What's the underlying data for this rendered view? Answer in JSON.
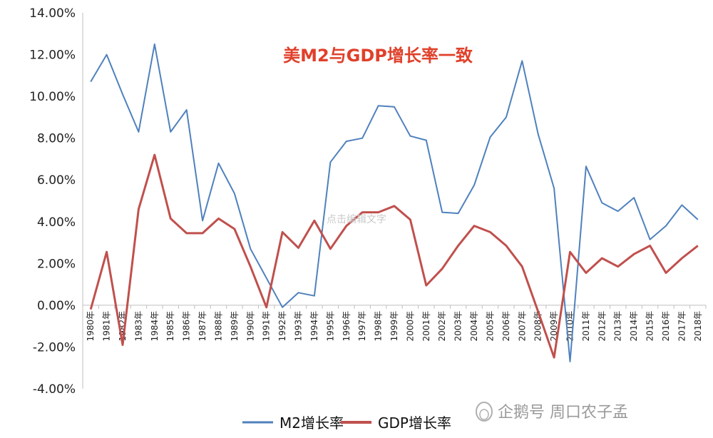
{
  "colors": {
    "m2": "#4f81bd",
    "gdp": "#c0504d",
    "title": "#e0402a"
  },
  "watermark_text": "点击编辑文字",
  "brand_text": "企鹅号 周口农子孟",
  "chart_data": {
    "type": "line",
    "title": "美M2与GDP增长率一致",
    "categories": [
      "1980年",
      "1981年",
      "1982年",
      "1983年",
      "1984年",
      "1985年",
      "1986年",
      "1987年",
      "1988年",
      "1989年",
      "1990年",
      "1991年",
      "1992年",
      "1993年",
      "1994年",
      "1995年",
      "1996年",
      "1997年",
      "1998年",
      "1999年",
      "2000年",
      "2001年",
      "2002年",
      "2003年",
      "2004年",
      "2005年",
      "2006年",
      "2007年",
      "2008年",
      "2009年",
      "2010年",
      "2011年",
      "2012年",
      "2013年",
      "2014年",
      "2015年",
      "2016年",
      "2017年",
      "2018年"
    ],
    "series": [
      {
        "name": "M2增长率",
        "values": [
          10.7,
          12.0,
          10.1,
          8.3,
          12.5,
          8.3,
          9.35,
          4.05,
          6.8,
          5.35,
          2.7,
          1.3,
          -0.1,
          0.6,
          0.45,
          6.85,
          7.85,
          8.0,
          9.55,
          9.5,
          8.1,
          7.9,
          4.45,
          4.4,
          5.75,
          8.05,
          9.0,
          11.7,
          8.2,
          5.6,
          -2.7,
          6.65,
          4.9,
          4.5,
          5.15,
          3.15,
          3.8,
          4.8,
          4.1
        ]
      },
      {
        "name": "GDP增长率",
        "values": [
          -0.2,
          2.55,
          -1.9,
          4.6,
          7.2,
          4.15,
          3.45,
          3.45,
          4.15,
          3.65,
          1.85,
          -0.1,
          3.5,
          2.75,
          4.05,
          2.7,
          3.8,
          4.45,
          4.45,
          4.75,
          4.1,
          0.95,
          1.75,
          2.85,
          3.8,
          3.5,
          2.85,
          1.85,
          -0.3,
          -2.5,
          2.55,
          1.55,
          2.25,
          1.85,
          2.45,
          2.85,
          1.55,
          2.25,
          2.85
        ]
      }
    ],
    "yaxis": {
      "min": -4,
      "max": 14,
      "step": 2,
      "tick_labels": [
        "-4.00%",
        "-2.00%",
        "0.00%",
        "2.00%",
        "4.00%",
        "6.00%",
        "8.00%",
        "10.00%",
        "12.00%",
        "14.00%"
      ]
    },
    "legend_position": "bottom",
    "grid": false
  }
}
